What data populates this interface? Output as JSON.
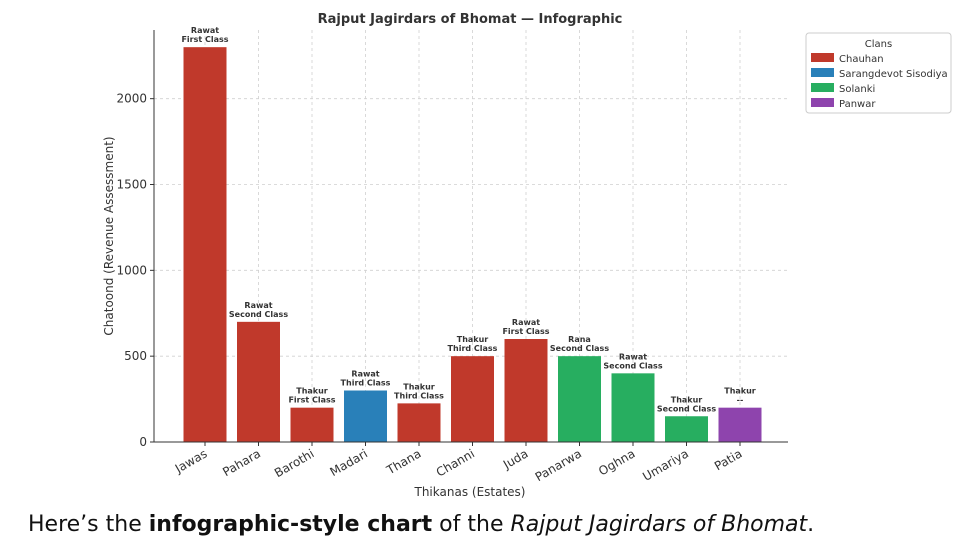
{
  "chart_data": {
    "type": "bar",
    "title": "Rajput Jagirdars of Bhomat — Infographic",
    "xlabel": "Thikanas (Estates)",
    "ylabel": "Chatoond (Revenue Assessment)",
    "ylim": [
      0,
      2400
    ],
    "yticks": [
      0,
      500,
      1000,
      1500,
      2000
    ],
    "grid": true,
    "legend_title": "Clans",
    "legend_position": "top-right",
    "clans": [
      {
        "name": "Chauhan",
        "color": "#c0392b"
      },
      {
        "name": "Sarangdevot Sisodiya",
        "color": "#2980b9"
      },
      {
        "name": "Solanki",
        "color": "#27ae60"
      },
      {
        "name": "Panwar",
        "color": "#8e44ad"
      }
    ],
    "bars": [
      {
        "category": "Jawas",
        "value": 2300,
        "clan": 0,
        "title": "Rawat",
        "class": "First Class"
      },
      {
        "category": "Pahara",
        "value": 700,
        "clan": 0,
        "title": "Rawat",
        "class": "Second Class"
      },
      {
        "category": "Barothi",
        "value": 200,
        "clan": 0,
        "title": "Thakur",
        "class": "First Class"
      },
      {
        "category": "Madari",
        "value": 300,
        "clan": 1,
        "title": "Rawat",
        "class": "Third Class"
      },
      {
        "category": "Thana",
        "value": 225,
        "clan": 0,
        "title": "Thakur",
        "class": "Third Class"
      },
      {
        "category": "Channi",
        "value": 500,
        "clan": 0,
        "title": "Thakur",
        "class": "Third Class"
      },
      {
        "category": "Juda",
        "value": 600,
        "clan": 0,
        "title": "Rawat",
        "class": "First Class"
      },
      {
        "category": "Panarwa",
        "value": 500,
        "clan": 2,
        "title": "Rana",
        "class": "Second Class"
      },
      {
        "category": "Oghna",
        "value": 400,
        "clan": 2,
        "title": "Rawat",
        "class": "Second Class"
      },
      {
        "category": "Umariya",
        "value": 150,
        "clan": 2,
        "title": "Thakur",
        "class": "Second Class"
      },
      {
        "category": "Patia",
        "value": 200,
        "clan": 3,
        "title": "Thakur",
        "class": "--"
      }
    ]
  },
  "caption": {
    "prefix": "Here’s the ",
    "bold": "infographic-style chart",
    "middle": " of the ",
    "italic": "Rajput Jagirdars of Bhomat",
    "suffix": "."
  }
}
